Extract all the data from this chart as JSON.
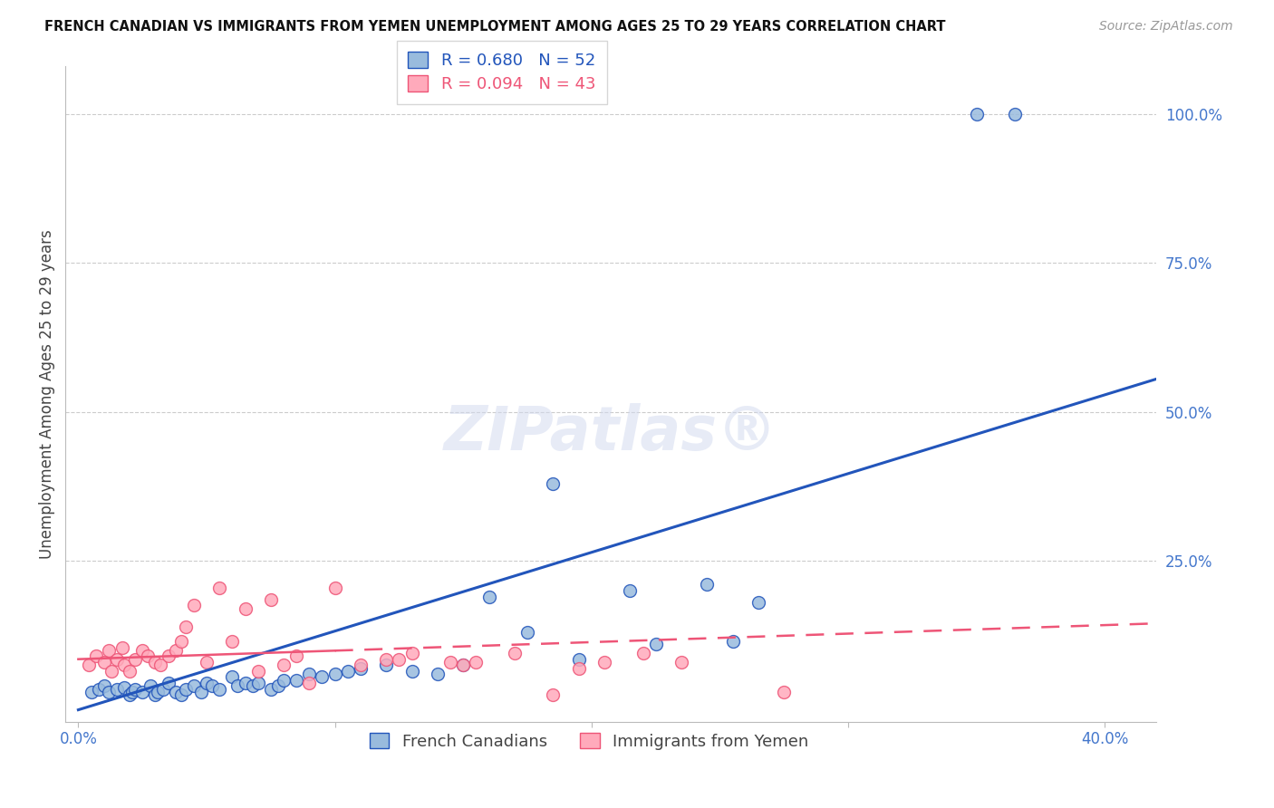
{
  "title": "FRENCH CANADIAN VS IMMIGRANTS FROM YEMEN UNEMPLOYMENT AMONG AGES 25 TO 29 YEARS CORRELATION CHART",
  "source": "Source: ZipAtlas.com",
  "ylabel": "Unemployment Among Ages 25 to 29 years",
  "legend_label_blue": "French Canadians",
  "legend_label_pink": "Immigrants from Yemen",
  "R_blue": 0.68,
  "N_blue": 52,
  "R_pink": 0.094,
  "N_pink": 43,
  "xlim": [
    -0.005,
    0.42
  ],
  "ylim": [
    -0.02,
    1.08
  ],
  "xticks": [
    0.0,
    0.1,
    0.2,
    0.3,
    0.4
  ],
  "xtick_labels": [
    "0.0%",
    "",
    "",
    "",
    "40.0%"
  ],
  "yticks_right": [
    0.25,
    0.5,
    0.75,
    1.0
  ],
  "ytick_labels_right": [
    "25.0%",
    "50.0%",
    "75.0%",
    "100.0%"
  ],
  "color_blue": "#99BBDD",
  "color_pink": "#FFAABB",
  "color_line_blue": "#2255BB",
  "color_line_pink": "#EE5577",
  "blue_x": [
    0.005,
    0.008,
    0.01,
    0.012,
    0.015,
    0.018,
    0.02,
    0.021,
    0.022,
    0.025,
    0.028,
    0.03,
    0.031,
    0.033,
    0.035,
    0.038,
    0.04,
    0.042,
    0.045,
    0.048,
    0.05,
    0.052,
    0.055,
    0.06,
    0.062,
    0.065,
    0.068,
    0.07,
    0.075,
    0.078,
    0.08,
    0.085,
    0.09,
    0.095,
    0.1,
    0.105,
    0.11,
    0.12,
    0.13,
    0.14,
    0.15,
    0.16,
    0.175,
    0.185,
    0.195,
    0.215,
    0.225,
    0.245,
    0.255,
    0.265,
    0.35,
    0.365
  ],
  "blue_y": [
    0.03,
    0.035,
    0.04,
    0.03,
    0.035,
    0.038,
    0.025,
    0.03,
    0.035,
    0.03,
    0.04,
    0.025,
    0.03,
    0.035,
    0.045,
    0.03,
    0.025,
    0.035,
    0.04,
    0.03,
    0.045,
    0.04,
    0.035,
    0.055,
    0.04,
    0.045,
    0.04,
    0.045,
    0.035,
    0.04,
    0.05,
    0.05,
    0.06,
    0.055,
    0.06,
    0.065,
    0.07,
    0.075,
    0.065,
    0.06,
    0.075,
    0.19,
    0.13,
    0.38,
    0.085,
    0.2,
    0.11,
    0.21,
    0.115,
    0.18,
    1.0,
    1.0
  ],
  "pink_x": [
    0.004,
    0.007,
    0.01,
    0.012,
    0.013,
    0.015,
    0.017,
    0.018,
    0.02,
    0.022,
    0.025,
    0.027,
    0.03,
    0.032,
    0.035,
    0.038,
    0.04,
    0.042,
    0.045,
    0.05,
    0.055,
    0.06,
    0.065,
    0.07,
    0.075,
    0.08,
    0.085,
    0.09,
    0.1,
    0.11,
    0.12,
    0.125,
    0.13,
    0.145,
    0.15,
    0.155,
    0.17,
    0.185,
    0.195,
    0.205,
    0.22,
    0.235,
    0.275
  ],
  "pink_y": [
    0.075,
    0.09,
    0.08,
    0.1,
    0.065,
    0.085,
    0.105,
    0.075,
    0.065,
    0.085,
    0.1,
    0.09,
    0.08,
    0.075,
    0.09,
    0.1,
    0.115,
    0.14,
    0.175,
    0.08,
    0.205,
    0.115,
    0.17,
    0.065,
    0.185,
    0.075,
    0.09,
    0.045,
    0.205,
    0.075,
    0.085,
    0.085,
    0.095,
    0.08,
    0.075,
    0.08,
    0.095,
    0.025,
    0.07,
    0.08,
    0.095,
    0.08,
    0.03
  ],
  "blue_line_x": [
    0.0,
    0.42
  ],
  "blue_line_y": [
    0.0,
    0.555
  ],
  "pink_line_x": [
    0.0,
    0.42
  ],
  "pink_line_y": [
    0.085,
    0.145
  ],
  "pink_line_solid_end_x": 0.1,
  "watermark_text": "ZIPatlas®",
  "grid_color": "#CCCCCC",
  "title_fontsize": 10.5,
  "axis_label_fontsize": 12,
  "tick_fontsize": 12,
  "legend_fontsize": 13,
  "source_fontsize": 10
}
